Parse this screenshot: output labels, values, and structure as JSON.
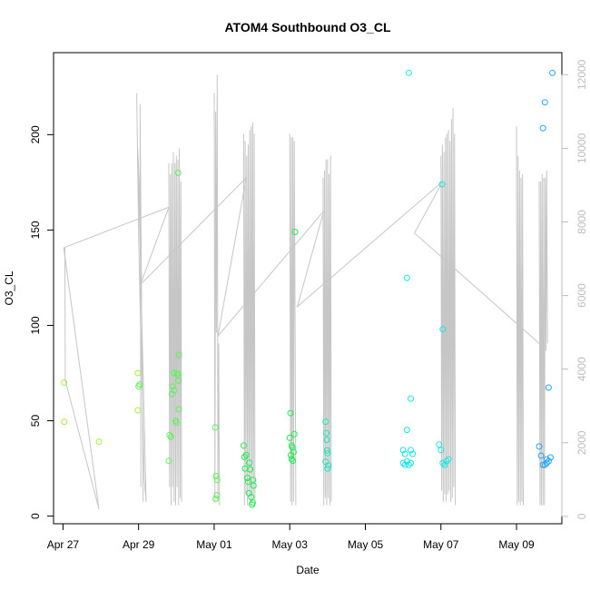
{
  "chart_data": {
    "type": "scatter",
    "title": "ATOM4 Southbound O3_CL",
    "xlabel": "Date",
    "ylabel": "O3_CL",
    "y2label": "",
    "x_ticks": [
      "Apr 27",
      "Apr 29",
      "May 01",
      "May 03",
      "May 05",
      "May 07",
      "May 09"
    ],
    "x_tick_days": [
      0,
      2,
      4,
      6,
      8,
      10,
      12
    ],
    "x_origin_date": "2016-04-27",
    "xlim_days": [
      -0.25,
      13.2
    ],
    "y_ticks": [
      0,
      50,
      100,
      150,
      200
    ],
    "ylim": [
      -4,
      243
    ],
    "y2_ticks": [
      0,
      2000,
      4000,
      6000,
      8000,
      10000,
      12000
    ],
    "ylim2": [
      -200,
      12600
    ],
    "grid": false,
    "points": [
      [
        0.03,
        70
      ],
      [
        0.03,
        49.5
      ],
      [
        0.95,
        39
      ],
      [
        1.98,
        75
      ],
      [
        2.03,
        69
      ],
      [
        2.0,
        68
      ],
      [
        1.98,
        55.5
      ],
      [
        2.8,
        29
      ],
      [
        2.82,
        42.5
      ],
      [
        2.85,
        41.5
      ],
      [
        2.88,
        64
      ],
      [
        2.9,
        68
      ],
      [
        2.93,
        75
      ],
      [
        2.95,
        66
      ],
      [
        2.98,
        50
      ],
      [
        3.0,
        49
      ],
      [
        3.02,
        75
      ],
      [
        3.04,
        74
      ],
      [
        3.05,
        71
      ],
      [
        3.06,
        56
      ],
      [
        3.07,
        84.5
      ],
      [
        3.05,
        180
      ],
      [
        4.03,
        46.5
      ],
      [
        4.05,
        21
      ],
      [
        4.08,
        19
      ],
      [
        4.04,
        9
      ],
      [
        4.07,
        11
      ],
      [
        4.78,
        37
      ],
      [
        4.8,
        31
      ],
      [
        4.82,
        25
      ],
      [
        4.85,
        32
      ],
      [
        4.88,
        20
      ],
      [
        4.9,
        18
      ],
      [
        4.92,
        12
      ],
      [
        4.95,
        24.5
      ],
      [
        4.98,
        10
      ],
      [
        5.0,
        6
      ],
      [
        5.02,
        7
      ],
      [
        5.04,
        16
      ],
      [
        5.03,
        19
      ],
      [
        4.93,
        28
      ],
      [
        6.0,
        41
      ],
      [
        6.02,
        54
      ],
      [
        6.05,
        37
      ],
      [
        6.07,
        36
      ],
      [
        6.03,
        32
      ],
      [
        6.05,
        30
      ],
      [
        6.08,
        29
      ],
      [
        6.1,
        33.5
      ],
      [
        6.12,
        43
      ],
      [
        6.14,
        149
      ],
      [
        6.95,
        49.5
      ],
      [
        6.97,
        43.5
      ],
      [
        6.98,
        40
      ],
      [
        6.99,
        34.5
      ],
      [
        7.0,
        33
      ],
      [
        7.02,
        26.5
      ],
      [
        6.95,
        28.5
      ],
      [
        7.0,
        25
      ],
      [
        10.03,
        174
      ],
      [
        10.05,
        98
      ]
    ],
    "points_secondary": [
      [
        9.05,
        1700
      ],
      [
        9.1,
        6480
      ],
      [
        9.15,
        12050
      ],
      [
        9.2,
        3200
      ],
      [
        9.1,
        2350
      ],
      [
        9.2,
        1800
      ],
      [
        9.0,
        1450
      ],
      [
        9.05,
        1400
      ],
      [
        9.1,
        1500
      ],
      [
        9.15,
        1400
      ],
      [
        9.2,
        1450
      ],
      [
        9.25,
        1700
      ],
      [
        9.0,
        1800
      ],
      [
        9.95,
        1950
      ],
      [
        10.0,
        1800
      ],
      [
        10.05,
        1450
      ],
      [
        10.1,
        1400
      ],
      [
        10.15,
        1500
      ],
      [
        10.2,
        1550
      ],
      [
        12.6,
        1900
      ],
      [
        12.65,
        1650
      ],
      [
        12.7,
        1400
      ],
      [
        12.75,
        1400
      ],
      [
        12.8,
        1450
      ],
      [
        12.85,
        1500
      ],
      [
        12.9,
        1600
      ],
      [
        12.7,
        10550
      ],
      [
        12.75,
        11250
      ],
      [
        12.85,
        3500
      ],
      [
        12.95,
        12050
      ],
      [
        12.8,
        1550
      ]
    ],
    "secondary_line": [
      [
        0.05,
        7300
      ],
      [
        0.06,
        3700
      ],
      [
        0.95,
        200
      ],
      [
        0.02,
        7300
      ],
      [
        2.8,
        8400
      ],
      [
        2.05,
        6300
      ],
      [
        4.85,
        9200
      ],
      [
        4.1,
        4900
      ],
      [
        6.9,
        8300
      ],
      [
        6.2,
        5700
      ],
      [
        10.05,
        9100
      ],
      [
        9.3,
        7700
      ],
      [
        12.6,
        4700
      ]
    ],
    "secondary_spikes": [
      [
        [
          1.95,
          11500
        ],
        [
          2.0,
          7600
        ],
        [
          2.05,
          5200
        ],
        [
          2.1,
          3200
        ],
        [
          2.15,
          1000
        ],
        [
          2.2,
          400
        ],
        [
          1.98,
          10000
        ],
        [
          2.02,
          9000
        ],
        [
          2.08,
          5600
        ],
        [
          2.12,
          400
        ],
        [
          2.04,
          11200
        ],
        [
          2.06,
          800
        ]
      ],
      [
        [
          2.8,
          9600
        ],
        [
          2.82,
          800
        ],
        [
          2.84,
          9300
        ],
        [
          2.86,
          300
        ],
        [
          2.88,
          9600
        ],
        [
          2.9,
          800
        ],
        [
          2.92,
          9900
        ],
        [
          2.94,
          400
        ],
        [
          2.96,
          9600
        ],
        [
          2.98,
          300
        ],
        [
          3.0,
          9800
        ],
        [
          3.02,
          800
        ],
        [
          3.04,
          9700
        ],
        [
          3.06,
          300
        ],
        [
          3.08,
          10000
        ],
        [
          3.1,
          500
        ],
        [
          3.12,
          9100
        ],
        [
          3.14,
          400
        ]
      ],
      [
        [
          4.0,
          11500
        ],
        [
          4.02,
          400
        ],
        [
          4.04,
          11000
        ],
        [
          4.06,
          5000
        ],
        [
          4.08,
          12000
        ],
        [
          4.1,
          400
        ],
        [
          4.12,
          4700
        ],
        [
          4.14,
          300
        ]
      ],
      [
        [
          4.78,
          10400
        ],
        [
          4.8,
          300
        ],
        [
          4.82,
          10200
        ],
        [
          4.84,
          600
        ],
        [
          4.86,
          9800
        ],
        [
          4.88,
          300
        ],
        [
          4.9,
          10100
        ],
        [
          4.92,
          600
        ],
        [
          4.94,
          10500
        ],
        [
          4.96,
          400
        ],
        [
          4.98,
          10600
        ],
        [
          5.0,
          300
        ],
        [
          5.02,
          10700
        ],
        [
          5.04,
          500
        ],
        [
          5.06,
          10400
        ],
        [
          5.08,
          300
        ]
      ],
      [
        [
          6.0,
          10400
        ],
        [
          6.02,
          400
        ],
        [
          6.04,
          10300
        ],
        [
          6.06,
          300
        ],
        [
          6.08,
          10300
        ],
        [
          6.1,
          400
        ],
        [
          6.12,
          10200
        ],
        [
          6.14,
          5200
        ],
        [
          6.16,
          300
        ]
      ],
      [
        [
          6.88,
          9200
        ],
        [
          6.9,
          300
        ],
        [
          6.92,
          9400
        ],
        [
          6.94,
          500
        ],
        [
          6.96,
          9700
        ],
        [
          6.98,
          300
        ],
        [
          7.0,
          9700
        ],
        [
          7.02,
          500
        ],
        [
          7.04,
          9300
        ],
        [
          7.06,
          300
        ],
        [
          7.08,
          9800
        ],
        [
          7.1,
          400
        ]
      ],
      [
        [
          10.0,
          9800
        ],
        [
          10.02,
          700
        ],
        [
          10.04,
          10100
        ],
        [
          10.06,
          400
        ],
        [
          10.08,
          9900
        ],
        [
          10.1,
          600
        ],
        [
          10.12,
          10300
        ],
        [
          10.14,
          400
        ],
        [
          10.16,
          10400
        ],
        [
          10.18,
          600
        ],
        [
          10.2,
          10500
        ],
        [
          10.22,
          700
        ],
        [
          10.24,
          10200
        ],
        [
          10.26,
          400
        ],
        [
          10.28,
          10800
        ],
        [
          10.3,
          500
        ],
        [
          10.32,
          11100
        ],
        [
          10.34,
          800
        ],
        [
          10.36,
          10400
        ],
        [
          10.38,
          300
        ]
      ],
      [
        [
          12.0,
          10600
        ],
        [
          12.02,
          300
        ],
        [
          12.04,
          9800
        ],
        [
          12.06,
          400
        ],
        [
          12.08,
          9400
        ],
        [
          12.1,
          300
        ],
        [
          12.12,
          9200
        ],
        [
          12.14,
          400
        ],
        [
          12.16,
          9300
        ],
        [
          12.18,
          300
        ]
      ],
      [
        [
          12.6,
          9100
        ],
        [
          12.62,
          300
        ],
        [
          12.64,
          9100
        ],
        [
          12.66,
          300
        ],
        [
          12.68,
          9300
        ],
        [
          12.7,
          300
        ],
        [
          12.72,
          9200
        ],
        [
          12.74,
          300
        ],
        [
          12.76,
          9200
        ],
        [
          12.78,
          4500
        ],
        [
          12.8,
          9400
        ],
        [
          12.82,
          4700
        ]
      ]
    ],
    "colors": {
      "line": "#c6c6c6",
      "axis": "#000000",
      "secondary_axis": "#bdbdbd",
      "point_ramp": [
        "#a6ef3f",
        "#60f05a",
        "#21eb52",
        "#18e9b8",
        "#18e6e6",
        "#26a7f0"
      ]
    }
  }
}
